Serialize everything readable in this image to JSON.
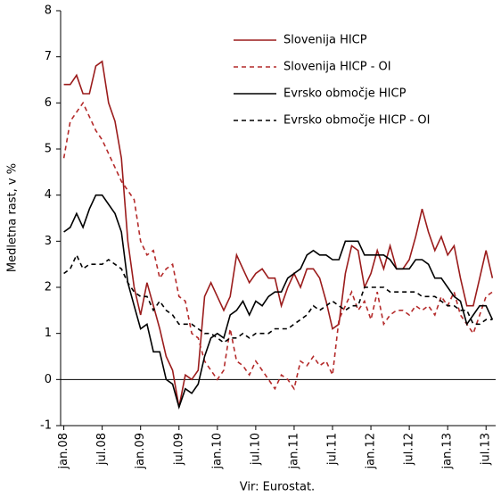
{
  "chart_data": {
    "type": "line",
    "y_label": "Medletna rast, v %",
    "note": "Vir: Eurostat.",
    "categories": [
      "jan.08",
      null,
      null,
      null,
      null,
      null,
      "jul.08",
      null,
      null,
      null,
      null,
      null,
      "jan.09",
      null,
      null,
      null,
      null,
      null,
      "jul.09",
      null,
      null,
      null,
      null,
      null,
      "jan.10",
      null,
      null,
      null,
      null,
      null,
      "jul.10",
      null,
      null,
      null,
      null,
      null,
      "jan.11",
      null,
      null,
      null,
      null,
      null,
      "jul.11",
      null,
      null,
      null,
      null,
      null,
      "jan.12",
      null,
      null,
      null,
      null,
      null,
      "jul.12",
      null,
      null,
      null,
      null,
      null,
      "jan.13",
      null,
      null,
      null,
      null,
      null,
      "jul.13",
      null
    ],
    "series": [
      {
        "name": "Slovenija HICP",
        "color": "#9b1c1c",
        "style": "solid",
        "values": [
          6.4,
          6.4,
          6.6,
          6.2,
          6.2,
          6.8,
          6.9,
          6.0,
          5.6,
          4.8,
          3.0,
          2.0,
          1.4,
          2.1,
          1.6,
          1.1,
          0.5,
          0.2,
          -0.6,
          0.1,
          0.0,
          0.2,
          1.8,
          2.1,
          1.8,
          1.5,
          1.8,
          2.7,
          2.4,
          2.1,
          2.3,
          2.4,
          2.2,
          2.2,
          1.6,
          2.0,
          2.3,
          2.0,
          2.4,
          2.4,
          2.2,
          1.7,
          1.1,
          1.2,
          2.3,
          2.9,
          2.8,
          2.0,
          2.3,
          2.8,
          2.4,
          2.9,
          2.4,
          2.4,
          2.6,
          3.1,
          3.7,
          3.2,
          2.8,
          3.1,
          2.7,
          2.9,
          2.2,
          1.6,
          1.6,
          2.2,
          2.8,
          2.2
        ]
      },
      {
        "name": "Slovenija HICP - OI",
        "color": "#b42a2a",
        "style": "dashed",
        "values": [
          4.8,
          5.6,
          5.8,
          6.0,
          5.7,
          5.4,
          5.2,
          4.9,
          4.6,
          4.3,
          4.1,
          3.9,
          3.0,
          2.7,
          2.8,
          2.2,
          2.4,
          2.5,
          1.8,
          1.7,
          1.0,
          0.9,
          0.4,
          0.2,
          0.0,
          0.2,
          1.1,
          0.4,
          0.3,
          0.1,
          0.4,
          0.2,
          0.0,
          -0.2,
          0.1,
          0.0,
          -0.2,
          0.4,
          0.3,
          0.5,
          0.3,
          0.4,
          0.1,
          1.3,
          1.6,
          1.9,
          1.5,
          1.7,
          1.3,
          1.9,
          1.2,
          1.4,
          1.5,
          1.5,
          1.4,
          1.6,
          1.5,
          1.6,
          1.4,
          1.8,
          1.6,
          1.9,
          1.4,
          1.2,
          1.0,
          1.4,
          1.8,
          1.9
        ]
      },
      {
        "name": "Evrsko območje HICP",
        "color": "#000000",
        "style": "solid",
        "values": [
          3.2,
          3.3,
          3.6,
          3.3,
          3.7,
          4.0,
          4.0,
          3.8,
          3.6,
          3.2,
          2.1,
          1.6,
          1.1,
          1.2,
          0.6,
          0.6,
          0.0,
          -0.1,
          -0.6,
          -0.2,
          -0.3,
          -0.1,
          0.5,
          0.9,
          1.0,
          0.9,
          1.4,
          1.5,
          1.7,
          1.4,
          1.7,
          1.6,
          1.8,
          1.9,
          1.9,
          2.2,
          2.3,
          2.4,
          2.7,
          2.8,
          2.7,
          2.7,
          2.6,
          2.6,
          3.0,
          3.0,
          3.0,
          2.7,
          2.7,
          2.7,
          2.7,
          2.6,
          2.4,
          2.4,
          2.4,
          2.6,
          2.6,
          2.5,
          2.2,
          2.2,
          2.0,
          1.8,
          1.7,
          1.2,
          1.4,
          1.6,
          1.6,
          1.3
        ]
      },
      {
        "name": "Evrsko območje HICP - OI",
        "color": "#000000",
        "style": "dashed",
        "values": [
          2.3,
          2.4,
          2.7,
          2.4,
          2.5,
          2.5,
          2.5,
          2.6,
          2.5,
          2.4,
          2.1,
          1.9,
          1.8,
          1.8,
          1.5,
          1.7,
          1.5,
          1.4,
          1.2,
          1.2,
          1.2,
          1.1,
          1.0,
          1.0,
          0.9,
          0.8,
          0.9,
          0.9,
          1.0,
          0.9,
          1.0,
          1.0,
          1.0,
          1.1,
          1.1,
          1.1,
          1.2,
          1.3,
          1.4,
          1.6,
          1.5,
          1.6,
          1.7,
          1.6,
          1.5,
          1.6,
          1.6,
          2.0,
          2.0,
          2.0,
          2.0,
          1.9,
          1.9,
          1.9,
          1.9,
          1.9,
          1.8,
          1.8,
          1.8,
          1.7,
          1.6,
          1.6,
          1.5,
          1.5,
          1.2,
          1.2,
          1.3,
          1.3
        ]
      }
    ],
    "ylim": [
      -1,
      8
    ],
    "yticks": [
      -1,
      0,
      1,
      2,
      3,
      4,
      5,
      6,
      7,
      8
    ],
    "grid": false,
    "legend": "upper right"
  }
}
